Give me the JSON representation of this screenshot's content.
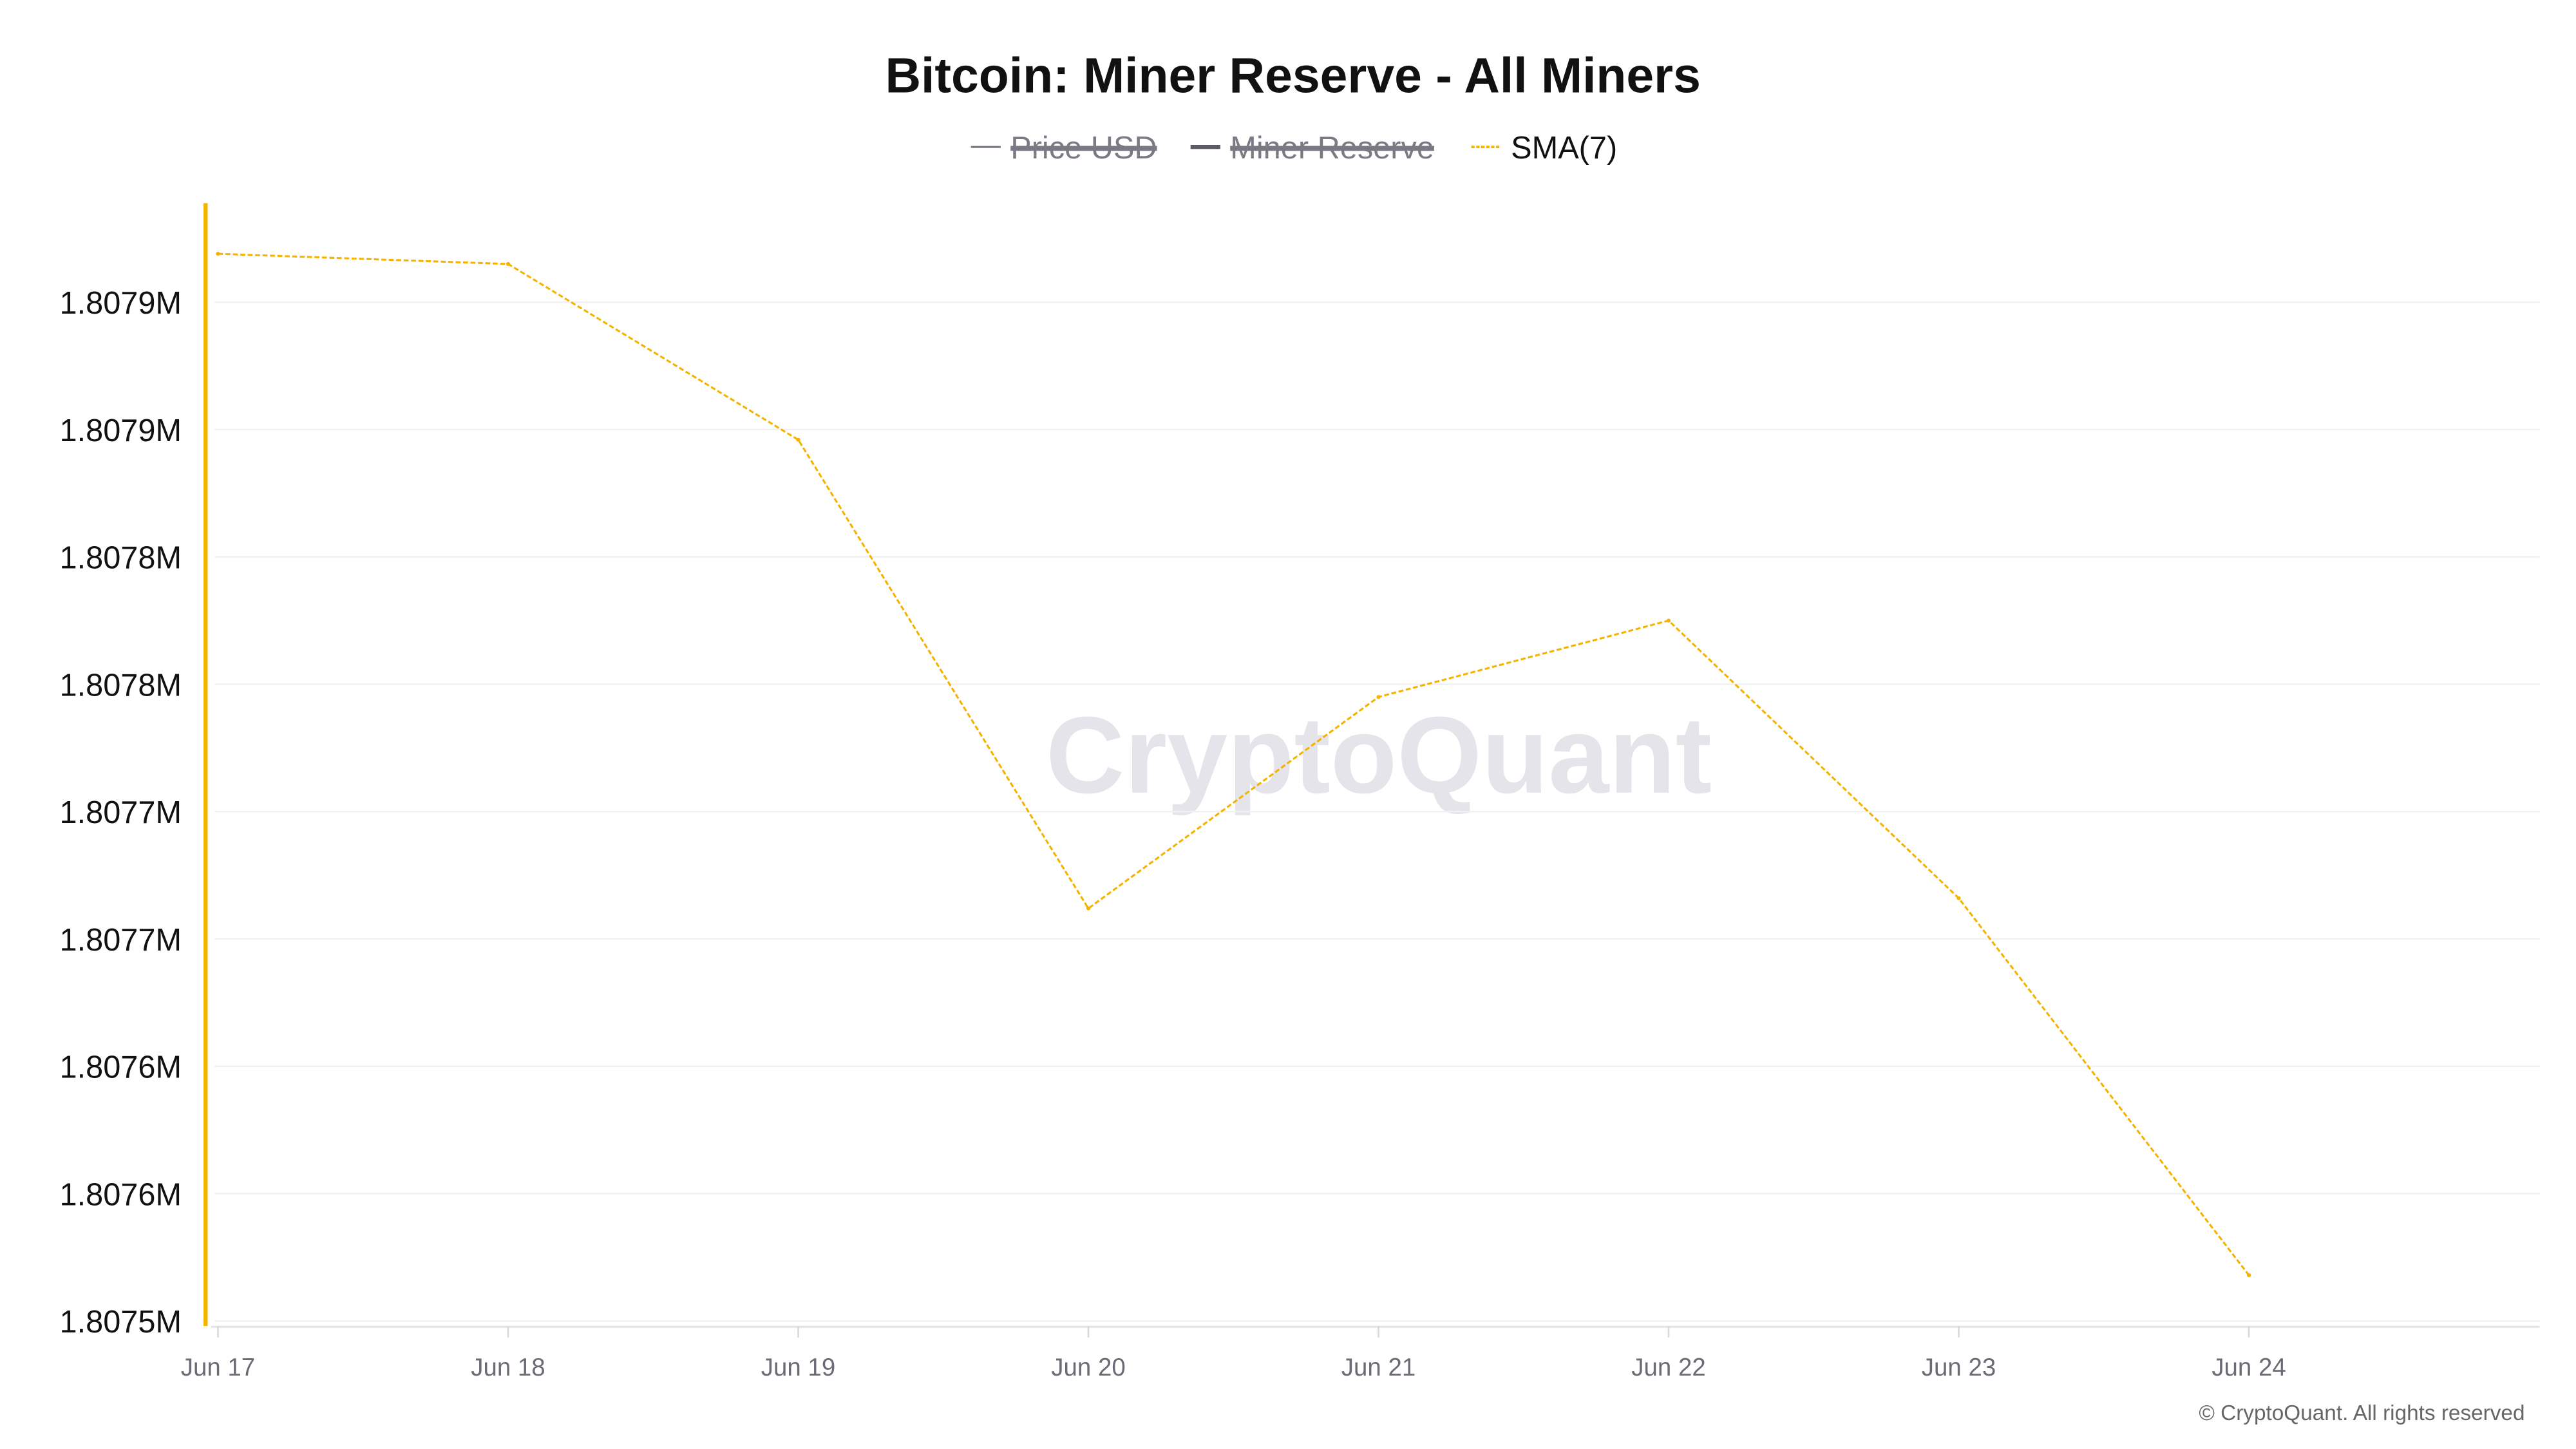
{
  "chart_data": {
    "type": "line",
    "title": "Bitcoin: Miner Reserve - All Miners",
    "legend": [
      {
        "name": "Price USD",
        "color": "#7a7a85",
        "hidden": true,
        "style": "solid"
      },
      {
        "name": "Miner Reserve",
        "color": "#5a5a66",
        "hidden": true,
        "style": "solid"
      },
      {
        "name": "SMA(7)",
        "color": "#f5b300",
        "hidden": false,
        "style": "dashed"
      }
    ],
    "legend_position": "top-center",
    "categories": [
      "Jun 17",
      "Jun 18",
      "Jun 19",
      "Jun 20",
      "Jun 21",
      "Jun 22",
      "Jun 23",
      "Jun 24"
    ],
    "series": [
      {
        "name": "SMA(7)",
        "color": "#f5b300",
        "values": [
          1807919,
          1807915,
          1807846,
          1807662,
          1807745,
          1807775,
          1807666,
          1807518
        ]
      }
    ],
    "yticks": [
      1807900,
      1807850,
      1807800,
      1807750,
      1807700,
      1807650,
      1807600,
      1807550,
      1807500
    ],
    "ytick_labels": [
      "1.8079M",
      "1.8079M",
      "1.8078M",
      "1.8078M",
      "1.8077M",
      "1.8077M",
      "1.8076M",
      "1.8076M",
      "1.8075M"
    ],
    "ylim": [
      1807500,
      1807900
    ],
    "grid": true,
    "axis_color": "#f5b300"
  },
  "watermark": "CryptoQuant",
  "footer": "© CryptoQuant. All rights reserved"
}
